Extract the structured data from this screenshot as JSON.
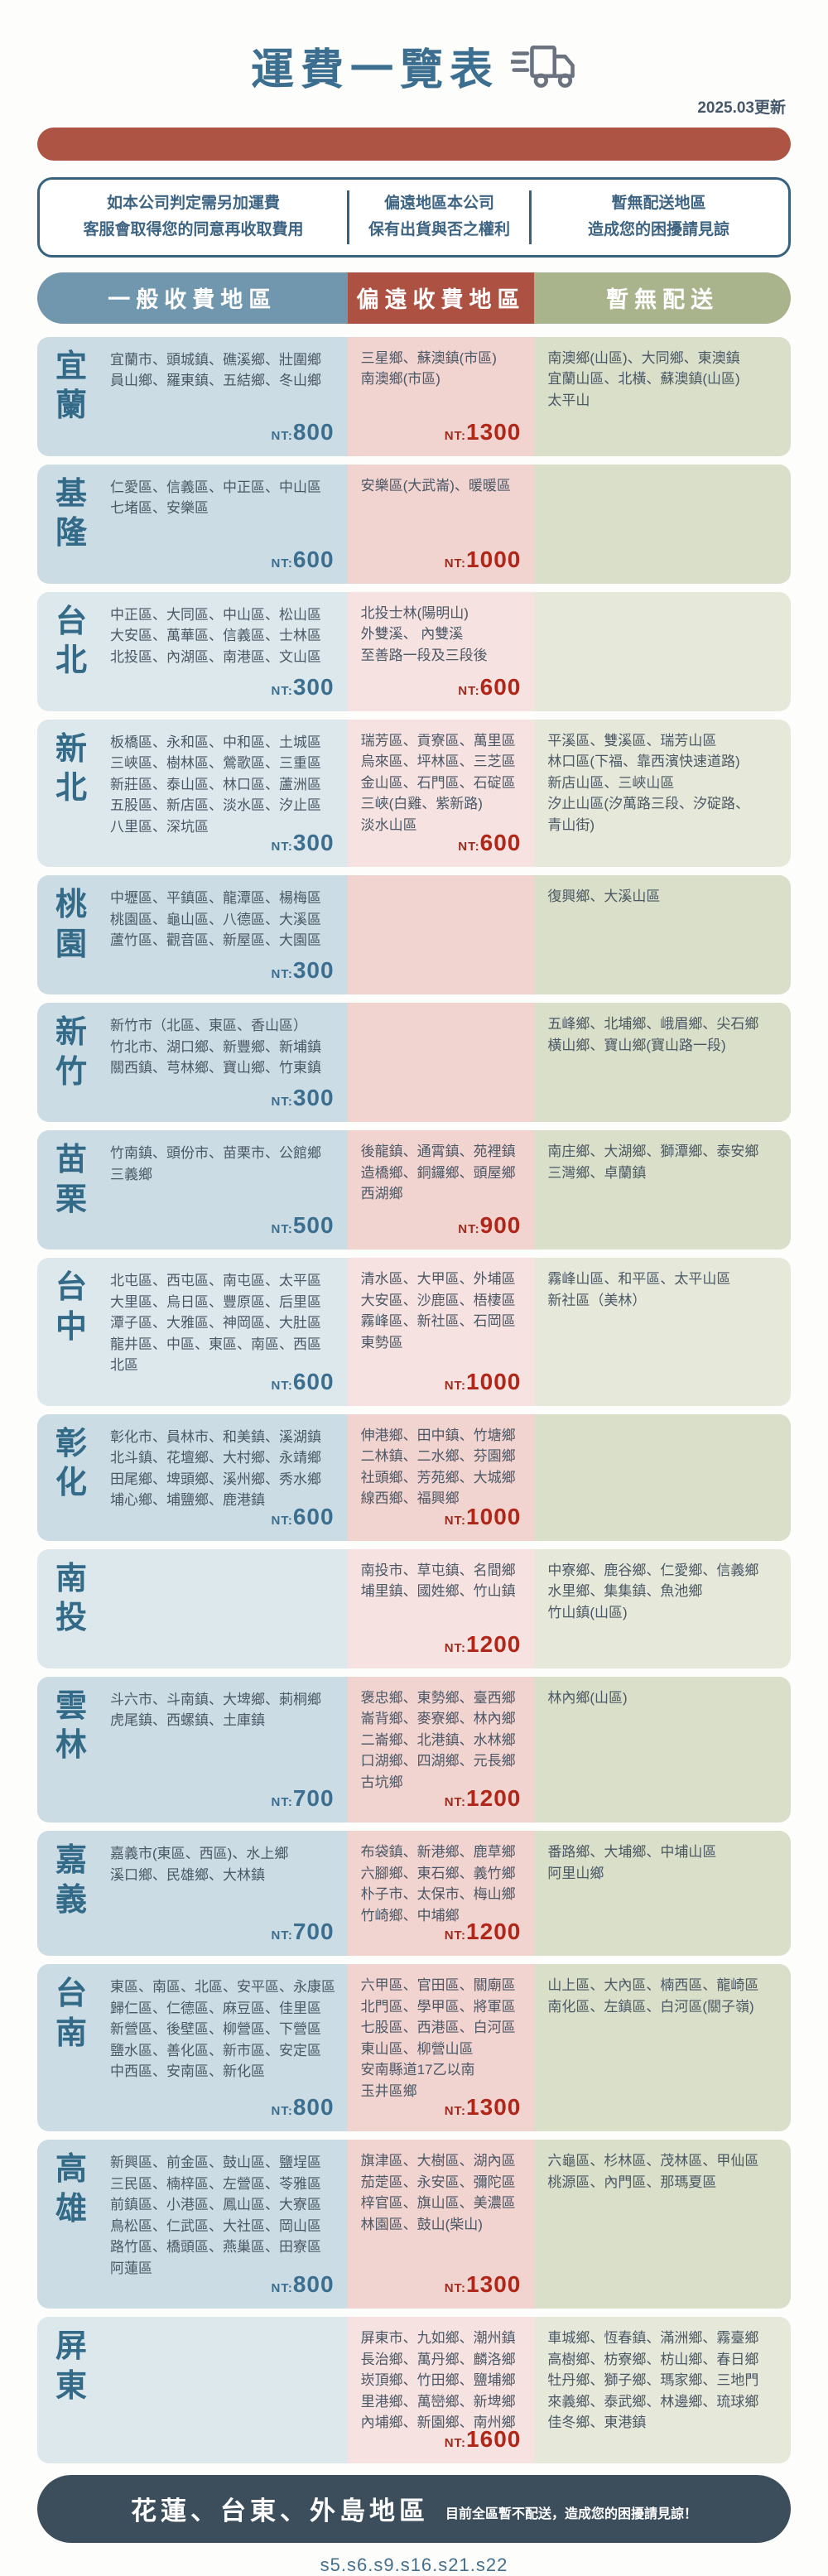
{
  "header": {
    "title": "運費一覽表",
    "updated": "2025.03更新"
  },
  "notices": [
    {
      "line1": "如本公司判定需另加運費",
      "line2": "客服會取得您的同意再收取費用"
    },
    {
      "line1": "偏遠地區本公司",
      "line2": "保有出貨與否之權利"
    },
    {
      "line1": "暫無配送地區",
      "line2": "造成您的困擾請見諒"
    }
  ],
  "columns": [
    {
      "label": "一般收費地區",
      "color": "#7097ad"
    },
    {
      "label": "偏遠收費地區",
      "color": "#ad5243"
    },
    {
      "label": "暫無配送",
      "color": "#a9b38c"
    }
  ],
  "currency_prefix": "NT:",
  "rows": [
    {
      "region": "宜蘭",
      "shade": "dark",
      "general": [
        "宜蘭市、頭城鎮、礁溪鄉、壯圍鄉",
        "員山鄉、羅東鎮、五結鄉、冬山鄉"
      ],
      "general_price": "800",
      "remote": [
        "三星鄉、蘇澳鎮(市區)",
        "南澳鄉(市區)"
      ],
      "remote_price": "1300",
      "none": [
        "南澳鄉(山區)、大同鄉、東澳鎮",
        "宜蘭山區、北橫、蘇澳鎮(山區)",
        "太平山"
      ]
    },
    {
      "region": "基隆",
      "shade": "dark",
      "general": [
        "仁愛區、信義區、中正區、中山區",
        "七堵區、安樂區"
      ],
      "general_price": "600",
      "remote": [
        "安樂區(大武崙)、暖暖區"
      ],
      "remote_price": "1000",
      "none": []
    },
    {
      "region": "台北",
      "shade": "light",
      "general": [
        "中正區、大同區、中山區、松山區",
        "大安區、萬華區、信義區、士林區",
        "北投區、內湖區、南港區、文山區"
      ],
      "general_price": "300",
      "remote": [
        "北投士林(陽明山)",
        "外雙溪、 內雙溪",
        "至善路一段及三段後"
      ],
      "remote_price": "600",
      "none": []
    },
    {
      "region": "新北",
      "shade": "light",
      "general": [
        "板橋區、永和區、中和區、土城區",
        "三峽區、樹林區、鶯歌區、三重區",
        "新莊區、泰山區、林口區、蘆洲區",
        "五股區、新店區、淡水區、汐止區",
        "八里區、深坑區"
      ],
      "general_price": "300",
      "remote": [
        "瑞芳區、貢寮區、萬里區",
        "烏來區、坪林區、三芝區",
        "金山區、石門區、石碇區",
        "三峽(白雞、紫新路)",
        "淡水山區"
      ],
      "remote_price": "600",
      "none": [
        "平溪區、雙溪區、瑞芳山區",
        "林口區(下福、靠西濱快速道路)",
        "新店山區、三峽山區",
        "汐止山區(汐萬路三段、汐碇路、",
        "青山街)"
      ]
    },
    {
      "region": "桃園",
      "shade": "dark",
      "general": [
        "中壢區、平鎮區、龍潭區、楊梅區",
        "桃園區、龜山區、八德區、大溪區",
        "蘆竹區、觀音區、新屋區、大園區"
      ],
      "general_price": "300",
      "remote": [],
      "remote_price": "",
      "none": [
        "復興鄉、大溪山區"
      ]
    },
    {
      "region": "新竹",
      "shade": "dark",
      "general": [
        "新竹市（北區、東區、香山區）",
        "竹北市、湖口鄉、新豐鄉、新埔鎮",
        "關西鎮、芎林鄉、寶山鄉、竹東鎮"
      ],
      "general_price": "300",
      "remote": [],
      "remote_price": "",
      "none": [
        "五峰鄉、北埔鄉、峨眉鄉、尖石鄉",
        "橫山鄉、寶山鄉(寶山路一段)"
      ]
    },
    {
      "region": "苗栗",
      "shade": "dark",
      "general": [
        "竹南鎮、頭份市、苗栗市、公館鄉",
        "三義鄉"
      ],
      "general_price": "500",
      "remote": [
        "後龍鎮、通霄鎮、苑裡鎮",
        "造橋鄉、銅鑼鄉、頭屋鄉",
        "西湖鄉"
      ],
      "remote_price": "900",
      "none": [
        "南庄鄉、大湖鄉、獅潭鄉、泰安鄉",
        "三灣鄉、卓蘭鎮"
      ]
    },
    {
      "region": "台中",
      "shade": "light",
      "general": [
        "北屯區、西屯區、南屯區、太平區",
        "大里區、烏日區、豐原區、后里區",
        "潭子區、大雅區、神岡區、大肚區",
        "龍井區、中區、東區、南區、西區",
        "北區"
      ],
      "general_price": "600",
      "remote": [
        "清水區、大甲區、外埔區",
        "大安區、沙鹿區、梧棲區",
        "霧峰區、新社區、石岡區",
        "東勢區"
      ],
      "remote_price": "1000",
      "none": [
        "霧峰山區、和平區、太平山區",
        "新社區（美林）"
      ]
    },
    {
      "region": "彰化",
      "shade": "dark",
      "general": [
        "彰化市、員林市、和美鎮、溪湖鎮",
        "北斗鎮、花壇鄉、大村鄉、永靖鄉",
        "田尾鄉、埤頭鄉、溪州鄉、秀水鄉",
        "埔心鄉、埔鹽鄉、鹿港鎮"
      ],
      "general_price": "600",
      "remote": [
        "伸港鄉、田中鎮、竹塘鄉",
        "二林鎮、二水鄉、芬園鄉",
        "社頭鄉、芳苑鄉、大城鄉",
        "線西鄉、福興鄉"
      ],
      "remote_price": "1000",
      "none": []
    },
    {
      "region": "南投",
      "shade": "light",
      "general": [],
      "general_price": "",
      "remote": [
        "南投市、草屯鎮、名間鄉",
        "埔里鎮、國姓鄉、竹山鎮"
      ],
      "remote_price": "1200",
      "none": [
        "中寮鄉、鹿谷鄉、仁愛鄉、信義鄉",
        "水里鄉、集集鎮、魚池鄉",
        "竹山鎮(山區)"
      ]
    },
    {
      "region": "雲林",
      "shade": "dark",
      "general": [
        "斗六市、斗南鎮、大埤鄉、莿桐鄉",
        "虎尾鎮、西螺鎮、土庫鎮"
      ],
      "general_price": "700",
      "remote": [
        "褒忠鄉、東勢鄉、臺西鄉",
        "崙背鄉、麥寮鄉、林內鄉",
        "二崙鄉、北港鎮、水林鄉",
        "口湖鄉、四湖鄉、元長鄉",
        "古坑鄉"
      ],
      "remote_price": "1200",
      "none": [
        "林內鄉(山區)"
      ]
    },
    {
      "region": "嘉義",
      "shade": "dark",
      "general": [
        "嘉義市(東區、西區)、水上鄉",
        "溪口鄉、民雄鄉、大林鎮"
      ],
      "general_price": "700",
      "remote": [
        "布袋鎮、新港鄉、鹿草鄉",
        "六腳鄉、東石鄉、義竹鄉",
        "朴子市、太保市、梅山鄉",
        "竹崎鄉、中埔鄉"
      ],
      "remote_price": "1200",
      "none": [
        "番路鄉、大埔鄉、中埔山區",
        "阿里山鄉"
      ]
    },
    {
      "region": "台南",
      "shade": "dark",
      "general": [
        "東區、南區、北區、安平區、永康區",
        "歸仁區、仁德區、麻豆區、佳里區",
        "新營區、後壁區、柳營區、下營區",
        "鹽水區、善化區、新市區、安定區",
        "中西區、安南區、新化區"
      ],
      "general_price": "800",
      "remote": [
        "六甲區、官田區、關廟區",
        "北門區、學甲區、將軍區",
        "七股區、西港區、白河區",
        "東山區、柳營山區",
        "安南縣道17乙以南",
        "玉井區鄉"
      ],
      "remote_price": "1300",
      "none": [
        "山上區、大內區、楠西區、龍崎區",
        "南化區、左鎮區、白河區(關子嶺)"
      ]
    },
    {
      "region": "高雄",
      "shade": "dark",
      "general": [
        "新興區、前金區、鼓山區、鹽埕區",
        "三民區、楠梓區、左營區、苓雅區",
        "前鎮區、小港區、鳳山區、大寮區",
        "鳥松區、仁武區、大社區、岡山區",
        "路竹區、橋頭區、燕巢區、田寮區",
        "阿蓮區"
      ],
      "general_price": "800",
      "remote": [
        "旗津區、大樹區、湖內區",
        "茄萣區、永安區、彌陀區",
        "梓官區、旗山區、美濃區",
        "林園區、鼓山(柴山)"
      ],
      "remote_price": "1300",
      "none": [
        "六龜區、杉林區、茂林區、甲仙區",
        "桃源區、內門區、那瑪夏區"
      ]
    },
    {
      "region": "屏東",
      "shade": "light",
      "general": [],
      "general_price": "",
      "remote": [
        "屏東市、九如鄉、潮州鎮",
        "長治鄉、萬丹鄉、麟洛鄉",
        "崁頂鄉、竹田鄉、鹽埔鄉",
        "里港鄉、萬巒鄉、新埤鄉",
        "內埔鄉、新園鄉、南州鄉"
      ],
      "remote_price": "1600",
      "none": [
        "車城鄉、恆春鎮、滿洲鄉、霧臺鄉",
        "高樹鄉、枋寮鄉、枋山鄉、春日鄉",
        "牡丹鄉、獅子鄉、瑪家鄉、三地門",
        "來義鄉、泰武鄉、林邊鄉、琉球鄉",
        "佳冬鄉、東港鎮"
      ]
    }
  ],
  "footer": {
    "title": "花蓮、台東、外島地區",
    "note": "目前全區暫不配送，造成您的困擾請見諒！",
    "code": "s5.s6.s9.s16.s21.s22"
  },
  "colors": {
    "title_blue": "#3b6e8f",
    "divider_red": "#ad5444",
    "header_blue": "#7097ad",
    "header_red": "#ad5243",
    "header_green": "#a9b38c",
    "cell_blue": "#cbdce4",
    "cell_pink": "#f1d3d0",
    "cell_green": "#d9dfc8",
    "price_red": "#b02618",
    "footer_navy": "#3c4d5c"
  }
}
